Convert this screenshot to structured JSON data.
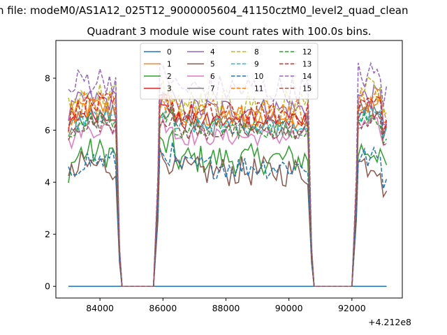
{
  "header": {
    "suptitle": "n file: modeM0/AS1A12_025T12_9000005604_41150cztM0_level2_quad_clean",
    "title": "Quadrant 3 module wise count rates with 100.0s bins."
  },
  "chart_data": {
    "type": "line",
    "title": "Quadrant 3 module wise count rates with 100.0s bins.",
    "xlabel": "",
    "ylabel": "",
    "x_offset_label": "+4.212e8",
    "x_offset": 421200000,
    "xlim": [
      82600,
      93600
    ],
    "ylim": [
      -0.45,
      9.45
    ],
    "xticks": [
      84000,
      86000,
      88000,
      90000,
      92000
    ],
    "xtick_labels": [
      "84000",
      "86000",
      "88000",
      "90000",
      "92000"
    ],
    "yticks": [
      0,
      2,
      4,
      6,
      8
    ],
    "ytick_labels": [
      "0",
      "2",
      "4",
      "6",
      "8"
    ],
    "grid": false,
    "legend": {
      "placement": "top-center",
      "columns": 4
    },
    "segments": [
      {
        "start": 83000,
        "end": 84500
      },
      {
        "start": 85900,
        "end": 90600
      },
      {
        "start": 92200,
        "end": 93150
      }
    ],
    "gaps": [
      [
        84500,
        85900
      ],
      [
        90600,
        92200
      ]
    ],
    "series": [
      {
        "name": "0",
        "color": "#1f77b4",
        "dash": "solid",
        "level": 0.0
      },
      {
        "name": "1",
        "color": "#ff7f0e",
        "dash": "solid",
        "level": 6.8
      },
      {
        "name": "2",
        "color": "#2ca02c",
        "dash": "solid",
        "level": 5.1
      },
      {
        "name": "3",
        "color": "#d62728",
        "dash": "solid",
        "level": 6.6
      },
      {
        "name": "4",
        "color": "#9467bd",
        "dash": "solid",
        "level": 7.1
      },
      {
        "name": "5",
        "color": "#8c564b",
        "dash": "solid",
        "level": 4.6
      },
      {
        "name": "6",
        "color": "#e377c2",
        "dash": "solid",
        "level": 6.0
      },
      {
        "name": "7",
        "color": "#7f7f7f",
        "dash": "solid",
        "level": 6.5
      },
      {
        "name": "8",
        "color": "#bcbd22",
        "dash": "dashed",
        "level": 7.3
      },
      {
        "name": "9",
        "color": "#17becf",
        "dash": "dashed",
        "level": 6.4
      },
      {
        "name": "10",
        "color": "#1f77b4",
        "dash": "dashed",
        "level": 4.8
      },
      {
        "name": "11",
        "color": "#ff7f0e",
        "dash": "dashed",
        "level": 7.0
      },
      {
        "name": "12",
        "color": "#2ca02c",
        "dash": "dashed",
        "level": 6.3
      },
      {
        "name": "13",
        "color": "#d62728",
        "dash": "dashed",
        "level": 6.9
      },
      {
        "name": "14",
        "color": "#9467bd",
        "dash": "dashed",
        "level": 7.9
      },
      {
        "name": "15",
        "color": "#8c564b",
        "dash": "dashed",
        "level": 6.2
      }
    ]
  }
}
